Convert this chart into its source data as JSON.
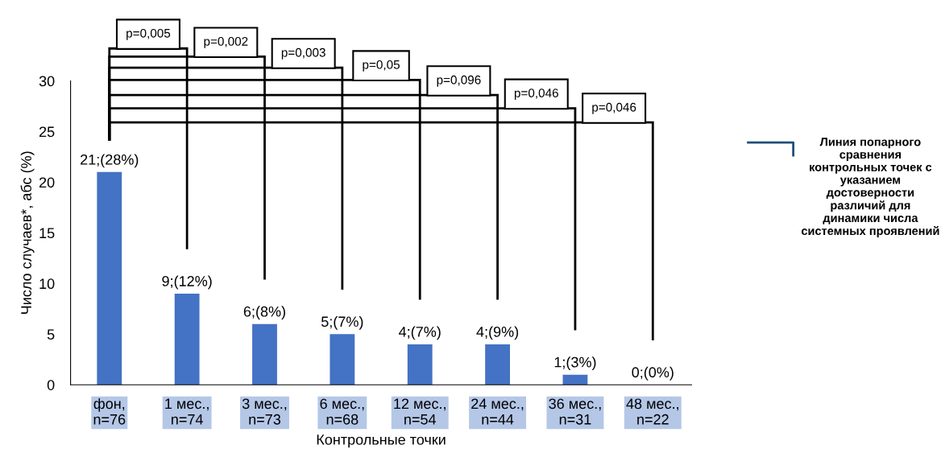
{
  "chart_data": {
    "type": "bar",
    "xlabel": "Контрольные точки",
    "ylabel": "Число случаев*, абс (%)",
    "categories": [
      "фон,\nn=76",
      "1 мес.,\nn=74",
      "3 мес.,\nn=73",
      "6 мес.,\nn=68",
      "12 мес.,\nn=54",
      "24 мес.,\nn=44",
      "36 мес.,\nn=31",
      "48 мес.,\nn=22"
    ],
    "values": [
      21,
      9,
      6,
      5,
      4,
      4,
      1,
      0
    ],
    "value_labels": [
      "21;(28%)",
      "9;(12%)",
      "6;(8%)",
      "5;(7%)",
      "4;(7%)",
      "4;(9%)",
      "1;(3%)",
      "0;(0%)"
    ],
    "color": "#4472c4",
    "ylim": [
      0,
      30
    ],
    "yticks": [
      0,
      5,
      10,
      15,
      20,
      25,
      30
    ],
    "grid": false,
    "legend": false,
    "annotations": [
      "p=0,005",
      "p=0,002",
      "p=0,003",
      "p=0,05",
      "p=0,096",
      "p=0,046",
      "p=0,046",
      "Линия попарного сравнения контрольных точек с указанием достоверности различий для динамики числа системных проявлений"
    ]
  }
}
